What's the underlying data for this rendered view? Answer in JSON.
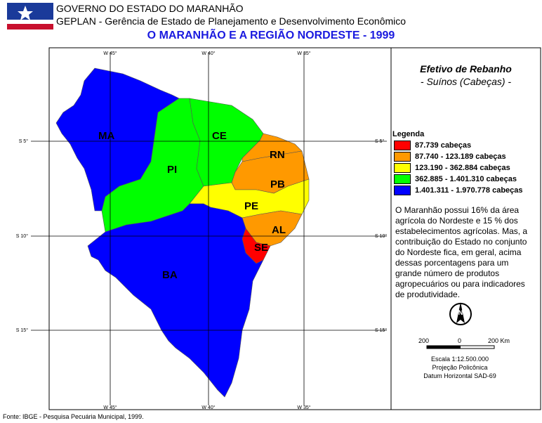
{
  "header": {
    "org": "GOVERNO DO ESTADO DO MARANHÃO",
    "dept": "GEPLAN - Gerência de Estado de Planejamento e Desenvolvimento Econômico",
    "title": "O MARANHÃO E A REGIÃO NORDESTE - 1999"
  },
  "map": {
    "grid": {
      "lon": [
        "W 45°",
        "W 40°",
        "W 35°"
      ],
      "lat": [
        "S 5°",
        "S 10°",
        "S 15°"
      ]
    },
    "regions": [
      {
        "label": "MA",
        "color": "#0000ff"
      },
      {
        "label": "PI",
        "color": "#00ff00"
      },
      {
        "label": "CE",
        "color": "#00ff00"
      },
      {
        "label": "RN",
        "color": "#ff9900"
      },
      {
        "label": "PB",
        "color": "#ff9900"
      },
      {
        "label": "PE",
        "color": "#ffff00"
      },
      {
        "label": "AL",
        "color": "#ff9900"
      },
      {
        "label": "SE",
        "color": "#ff0000"
      },
      {
        "label": "BA",
        "color": "#0000ff"
      }
    ]
  },
  "legend": {
    "title": "Efetivo de Rebanho",
    "subtitle": "- Suínos (Cabeças) -",
    "heading": "Legenda",
    "items": [
      {
        "label": "87.739 cabeças",
        "color": "#ff0000"
      },
      {
        "label": "87.740 - 123.189 cabeças",
        "color": "#ff9900"
      },
      {
        "label": "123.190 - 362.884 cabeças",
        "color": "#ffff00"
      },
      {
        "label": "362.885 - 1.401.310 cabeças",
        "color": "#00ff00"
      },
      {
        "label": "1.401.311 - 1.970.778 cabeças",
        "color": "#0000ff"
      }
    ]
  },
  "note": "O Maranhão possui 16% da área agrícola do Nordeste e 15 % dos estabelecimentos agrícolas. Mas, a contribuição do Estado no conjunto do Nordeste fica, em geral, acima dessas porcentagens para um grande número de produtos agropecuários ou para indicadores de produtividade.",
  "scale": {
    "north": "N",
    "labels": [
      "200",
      "0",
      "200 Km"
    ],
    "ratio": "Escala 1:12.500.000",
    "projection": "Projeção Policônica",
    "datum": "Datum Horizontal SAD-69"
  },
  "footer": {
    "source": "Fonte: IBGE - Pesquisa Pecuária Municipal, 1999."
  }
}
